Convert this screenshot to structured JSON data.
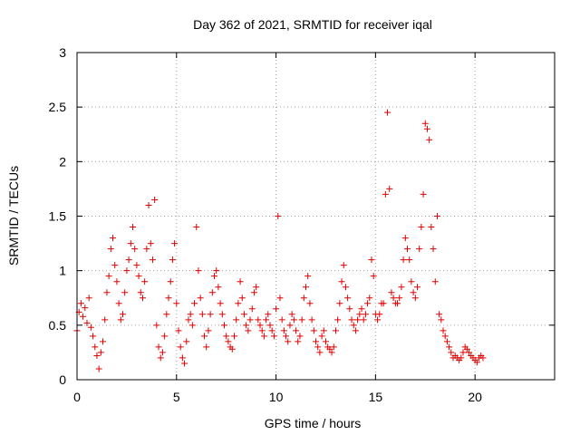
{
  "chart_data": {
    "type": "scatter",
    "title": "Day 362 of 2021, SRMTID for receiver iqal",
    "xlabel": "GPS time / hours",
    "ylabel": "SRMTID / TECUs",
    "xlim": [
      0,
      24
    ],
    "ylim": [
      0,
      3
    ],
    "grid": true,
    "marker": "+",
    "x_ticks": [
      0,
      5,
      10,
      15,
      20
    ],
    "x_tick_labels": [
      "0",
      "5",
      "10",
      "15",
      "20"
    ],
    "y_ticks": [
      0,
      0.5,
      1,
      1.5,
      2,
      2.5,
      3
    ],
    "y_tick_labels": [
      "0",
      "0.5",
      "1",
      "1.5",
      "2",
      "2.5",
      "3"
    ],
    "series": [
      {
        "name": "SRMTID",
        "color": "#e00000",
        "x_start": 0.0,
        "x_step": 0.1,
        "y": [
          0.45,
          0.62,
          0.7,
          0.58,
          0.66,
          0.52,
          0.75,
          0.48,
          0.4,
          0.3,
          0.22,
          0.1,
          0.25,
          0.35,
          0.55,
          0.8,
          0.95,
          1.2,
          1.3,
          1.05,
          0.9,
          0.7,
          0.55,
          0.6,
          0.8,
          1.0,
          1.1,
          1.25,
          1.4,
          1.2,
          1.05,
          0.95,
          0.8,
          0.75,
          0.9,
          1.2,
          1.6,
          1.25,
          1.1,
          1.65,
          0.5,
          0.3,
          0.2,
          0.25,
          0.4,
          0.6,
          0.75,
          0.9,
          1.1,
          1.25,
          0.7,
          0.45,
          0.3,
          0.2,
          0.15,
          0.35,
          0.55,
          0.6,
          0.5,
          0.7,
          1.4,
          1.0,
          0.75,
          0.6,
          0.4,
          0.3,
          0.45,
          0.6,
          0.8,
          0.95,
          1.0,
          0.85,
          0.7,
          0.6,
          0.5,
          0.4,
          0.35,
          0.3,
          0.28,
          0.4,
          0.55,
          0.7,
          0.9,
          0.75,
          0.6,
          0.5,
          0.45,
          0.55,
          0.65,
          0.8,
          0.85,
          0.55,
          0.5,
          0.45,
          0.4,
          0.55,
          0.6,
          0.5,
          0.45,
          0.4,
          0.65,
          1.5,
          0.75,
          0.55,
          0.45,
          0.4,
          0.35,
          0.5,
          0.6,
          0.55,
          0.45,
          0.35,
          0.4,
          0.55,
          0.75,
          0.85,
          0.95,
          0.7,
          0.55,
          0.45,
          0.35,
          0.3,
          0.25,
          0.4,
          0.45,
          0.35,
          0.3,
          0.28,
          0.25,
          0.3,
          0.45,
          0.55,
          0.7,
          0.9,
          1.05,
          0.85,
          0.75,
          0.65,
          0.55,
          0.5,
          0.45,
          0.55,
          0.6,
          0.65,
          0.55,
          0.6,
          0.7,
          0.75,
          1.1,
          0.95,
          0.6,
          0.55,
          0.6,
          0.7,
          0.7,
          1.7,
          2.45,
          1.75,
          0.8,
          0.75,
          0.7,
          0.7,
          0.75,
          0.85,
          1.1,
          1.3,
          1.2,
          1.1,
          0.9,
          0.8,
          0.75,
          0.85,
          1.2,
          1.4,
          1.7,
          2.35,
          2.3,
          2.2,
          1.4,
          1.2,
          0.9,
          1.5,
          0.6,
          0.55,
          0.45,
          0.4,
          0.35,
          0.3,
          0.25,
          0.2,
          0.22,
          0.2,
          0.18,
          0.2,
          0.25,
          0.3,
          0.28,
          0.25,
          0.22,
          0.2,
          0.18,
          0.16,
          0.2,
          0.22,
          0.2
        ]
      }
    ]
  }
}
